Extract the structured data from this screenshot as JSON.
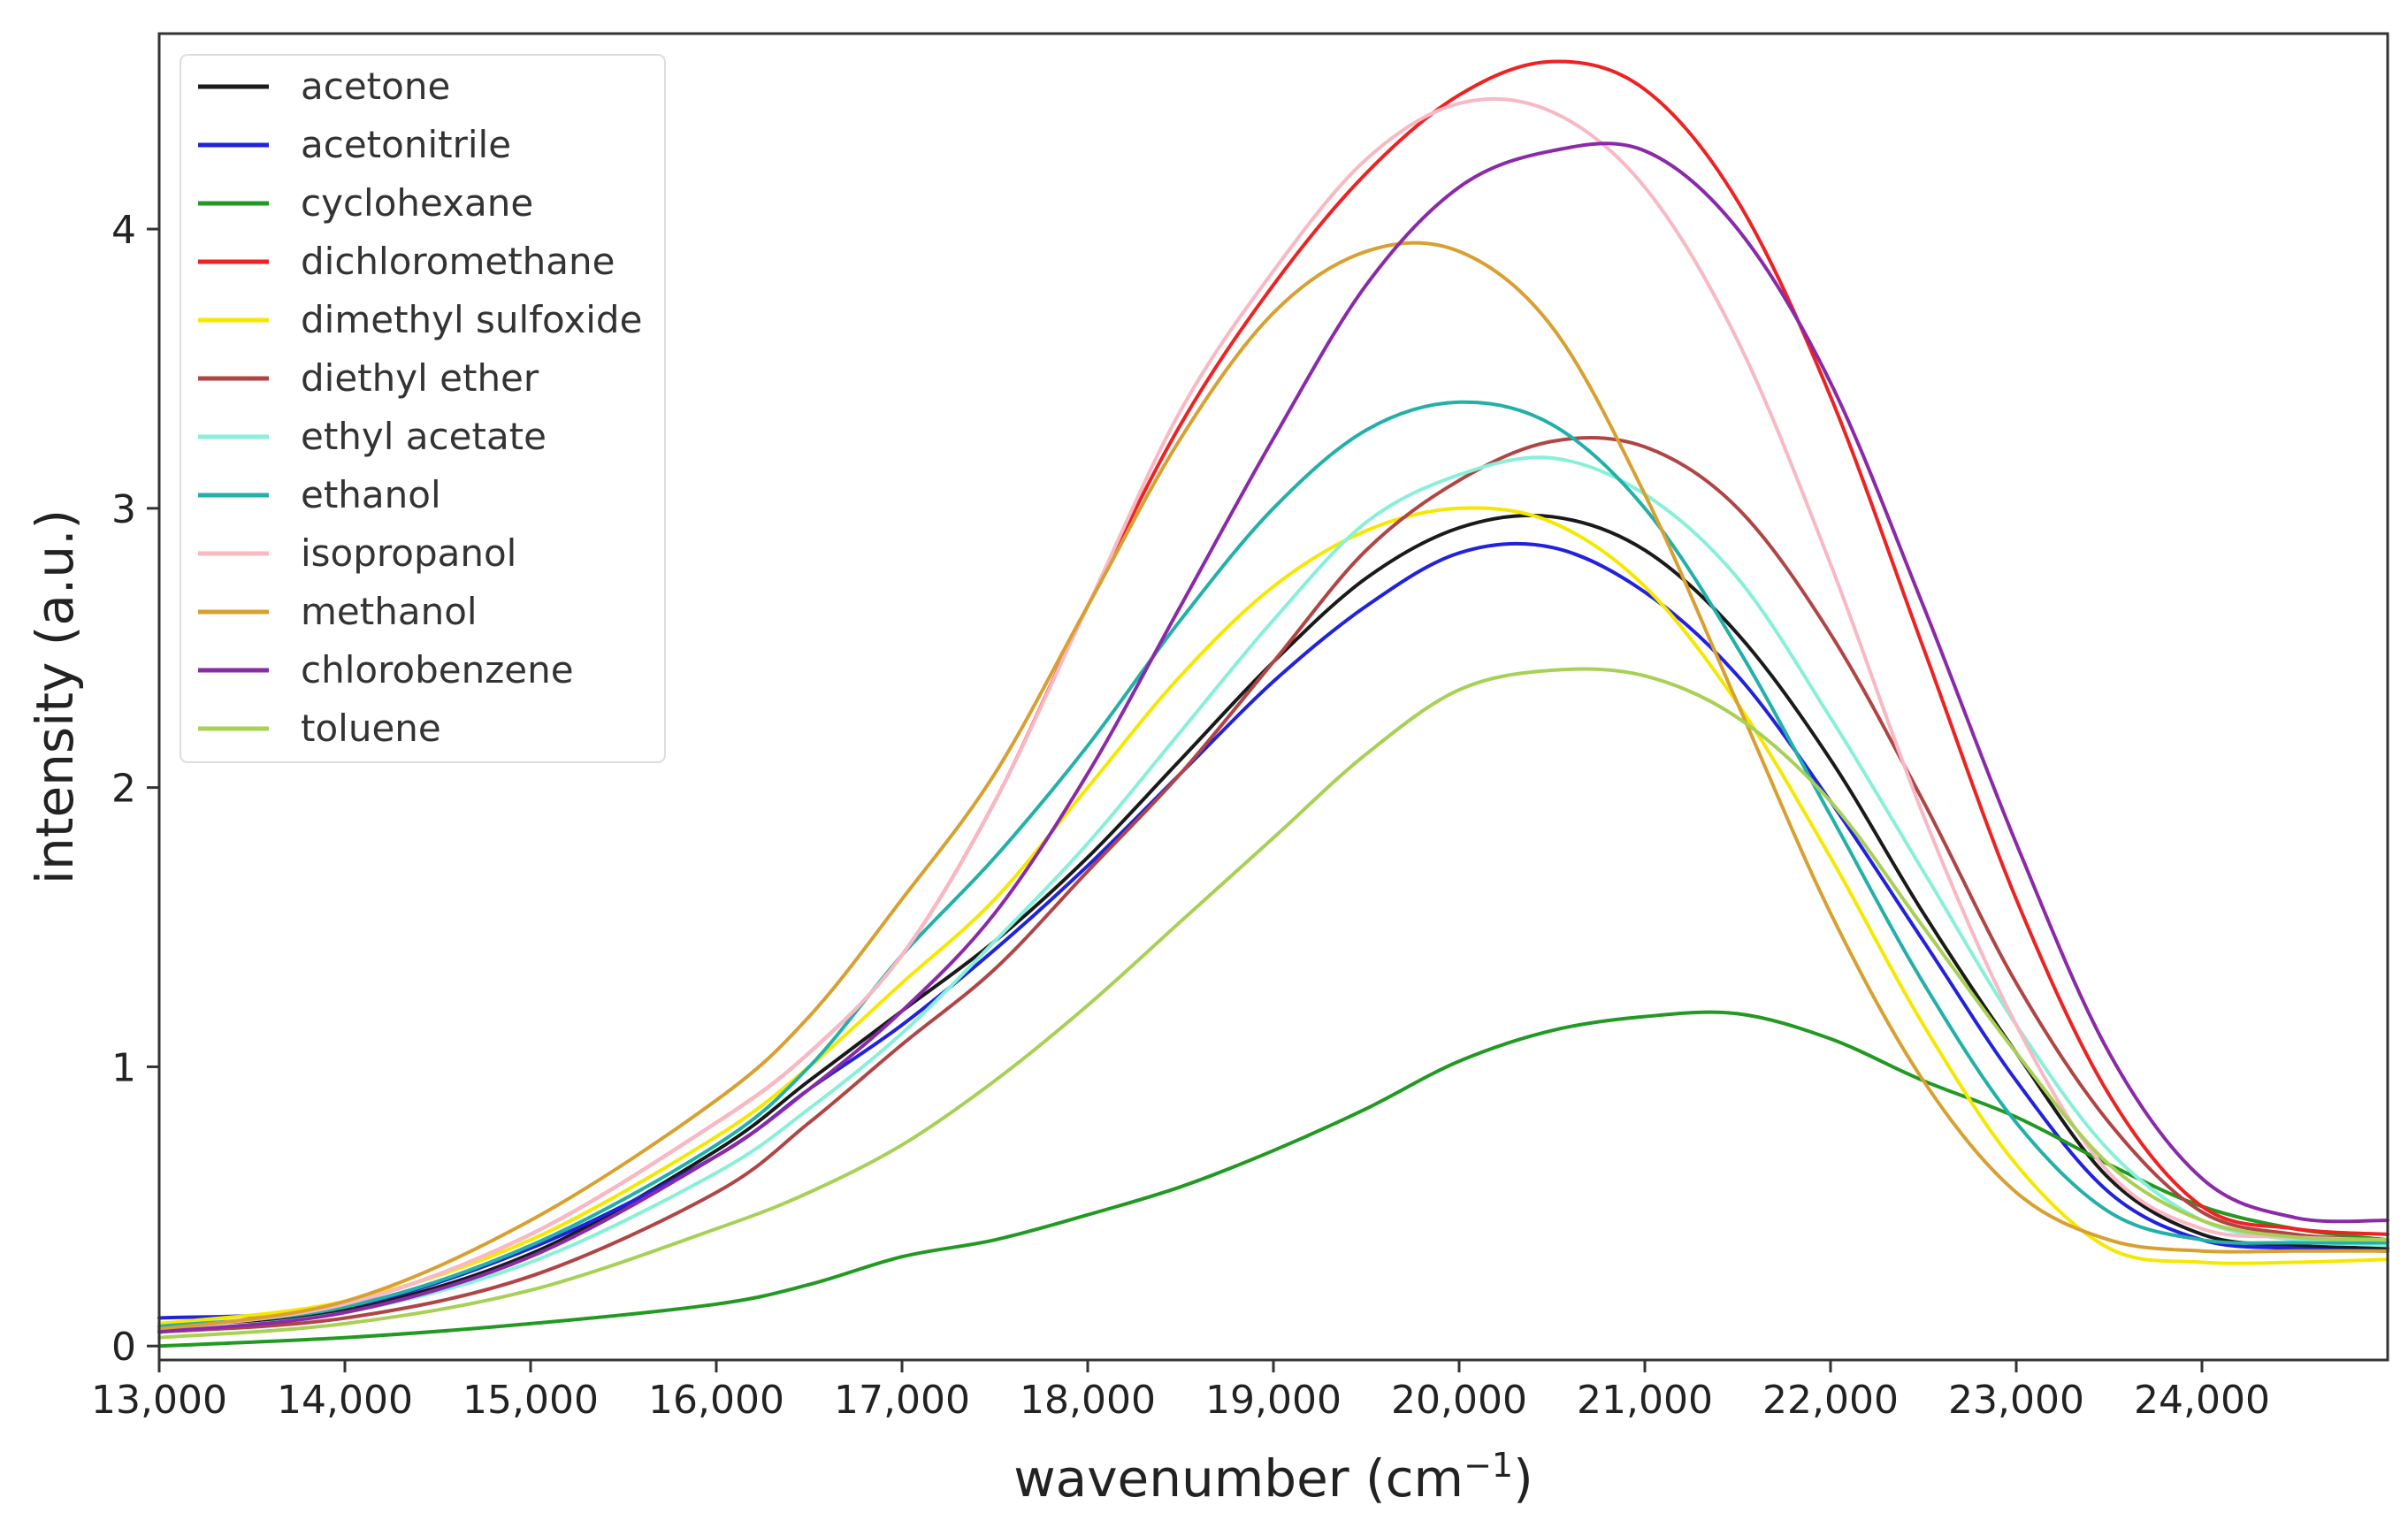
{
  "chart_data": {
    "type": "line",
    "xlabel": "wavenumber (cm",
    "xlabel_unit_exponent": "−1",
    "xlabel_close": ")",
    "ylabel": "intensity (a.u.)",
    "xlim": [
      13000,
      25000
    ],
    "ylim": [
      -0.05,
      4.7
    ],
    "xticks": [
      13000,
      14000,
      15000,
      16000,
      17000,
      18000,
      19000,
      20000,
      21000,
      22000,
      23000,
      24000
    ],
    "xtick_labels": [
      "13,000",
      "14,000",
      "15,000",
      "16,000",
      "17,000",
      "18,000",
      "19,000",
      "20,000",
      "21,000",
      "22,000",
      "23,000",
      "24,000"
    ],
    "yticks": [
      0,
      1,
      2,
      3,
      4
    ],
    "ytick_labels": [
      "0",
      "1",
      "2",
      "3",
      "4"
    ],
    "legend_position": "top-left",
    "x": [
      13000,
      14000,
      15000,
      16000,
      16500,
      17000,
      17500,
      18000,
      18500,
      19000,
      19500,
      20000,
      20500,
      21000,
      21500,
      22000,
      22500,
      23000,
      23500,
      24000,
      24500,
      25000
    ],
    "series": [
      {
        "name": "acetone",
        "color": "#1a1a1a",
        "values": [
          0.07,
          0.13,
          0.33,
          0.7,
          0.95,
          1.2,
          1.45,
          1.75,
          2.1,
          2.45,
          2.75,
          2.93,
          2.97,
          2.85,
          2.55,
          2.1,
          1.55,
          1.05,
          0.6,
          0.4,
          0.36,
          0.35
        ]
      },
      {
        "name": "acetonitrile",
        "color": "#2222dd",
        "values": [
          0.1,
          0.14,
          0.35,
          0.68,
          0.92,
          1.15,
          1.42,
          1.72,
          2.05,
          2.38,
          2.65,
          2.84,
          2.86,
          2.7,
          2.4,
          1.95,
          1.45,
          0.95,
          0.55,
          0.38,
          0.35,
          0.34
        ]
      },
      {
        "name": "cyclohexane",
        "color": "#229922",
        "values": [
          0.0,
          0.03,
          0.08,
          0.15,
          0.22,
          0.32,
          0.38,
          0.47,
          0.57,
          0.7,
          0.85,
          1.02,
          1.13,
          1.18,
          1.19,
          1.1,
          0.95,
          0.82,
          0.65,
          0.5,
          0.42,
          0.38
        ]
      },
      {
        "name": "dichloromethane",
        "color": "#ee2222",
        "values": [
          0.06,
          0.15,
          0.4,
          0.8,
          1.05,
          1.4,
          1.95,
          2.65,
          3.3,
          3.8,
          4.2,
          4.48,
          4.6,
          4.5,
          4.1,
          3.4,
          2.5,
          1.6,
          0.9,
          0.5,
          0.42,
          0.4
        ]
      },
      {
        "name": "dimethyl sulfoxide",
        "color": "#f5e800",
        "values": [
          0.08,
          0.16,
          0.38,
          0.75,
          1.0,
          1.3,
          1.6,
          2.0,
          2.4,
          2.72,
          2.92,
          3.0,
          2.95,
          2.72,
          2.3,
          1.75,
          1.15,
          0.65,
          0.35,
          0.3,
          0.3,
          0.31
        ]
      },
      {
        "name": "diethyl ether",
        "color": "#b04545",
        "values": [
          0.05,
          0.1,
          0.25,
          0.55,
          0.8,
          1.08,
          1.35,
          1.7,
          2.05,
          2.45,
          2.85,
          3.1,
          3.24,
          3.22,
          3.0,
          2.55,
          1.95,
          1.3,
          0.8,
          0.48,
          0.4,
          0.38
        ]
      },
      {
        "name": "ethyl acetate",
        "color": "#88f0d8",
        "values": [
          0.05,
          0.12,
          0.3,
          0.62,
          0.85,
          1.12,
          1.45,
          1.8,
          2.2,
          2.6,
          2.95,
          3.12,
          3.18,
          3.05,
          2.75,
          2.25,
          1.7,
          1.15,
          0.7,
          0.45,
          0.38,
          0.36
        ]
      },
      {
        "name": "ethanol",
        "color": "#22b0a8",
        "values": [
          0.07,
          0.14,
          0.36,
          0.72,
          1.0,
          1.4,
          1.75,
          2.15,
          2.6,
          3.0,
          3.28,
          3.38,
          3.3,
          3.0,
          2.5,
          1.9,
          1.3,
          0.8,
          0.48,
          0.38,
          0.37,
          0.37
        ]
      },
      {
        "name": "isopropanol",
        "color": "#f8b8c4",
        "values": [
          0.06,
          0.15,
          0.4,
          0.8,
          1.05,
          1.4,
          1.95,
          2.65,
          3.35,
          3.85,
          4.25,
          4.45,
          4.42,
          4.15,
          3.6,
          2.8,
          1.9,
          1.15,
          0.62,
          0.42,
          0.39,
          0.38
        ]
      },
      {
        "name": "methanol",
        "color": "#d8a030",
        "values": [
          0.06,
          0.16,
          0.45,
          0.88,
          1.18,
          1.6,
          2.05,
          2.65,
          3.25,
          3.7,
          3.92,
          3.92,
          3.65,
          3.05,
          2.3,
          1.55,
          0.95,
          0.55,
          0.38,
          0.34,
          0.34,
          0.34
        ]
      },
      {
        "name": "chlorobenzene",
        "color": "#8a2aa8",
        "values": [
          0.05,
          0.12,
          0.32,
          0.68,
          0.92,
          1.2,
          1.55,
          2.05,
          2.65,
          3.25,
          3.8,
          4.15,
          4.28,
          4.28,
          4.0,
          3.45,
          2.65,
          1.8,
          1.05,
          0.6,
          0.46,
          0.45
        ]
      },
      {
        "name": "toluene",
        "color": "#a8d055",
        "values": [
          0.03,
          0.08,
          0.2,
          0.42,
          0.55,
          0.72,
          0.95,
          1.22,
          1.52,
          1.82,
          2.12,
          2.35,
          2.42,
          2.4,
          2.25,
          1.95,
          1.5,
          1.05,
          0.65,
          0.45,
          0.39,
          0.38
        ]
      }
    ]
  }
}
